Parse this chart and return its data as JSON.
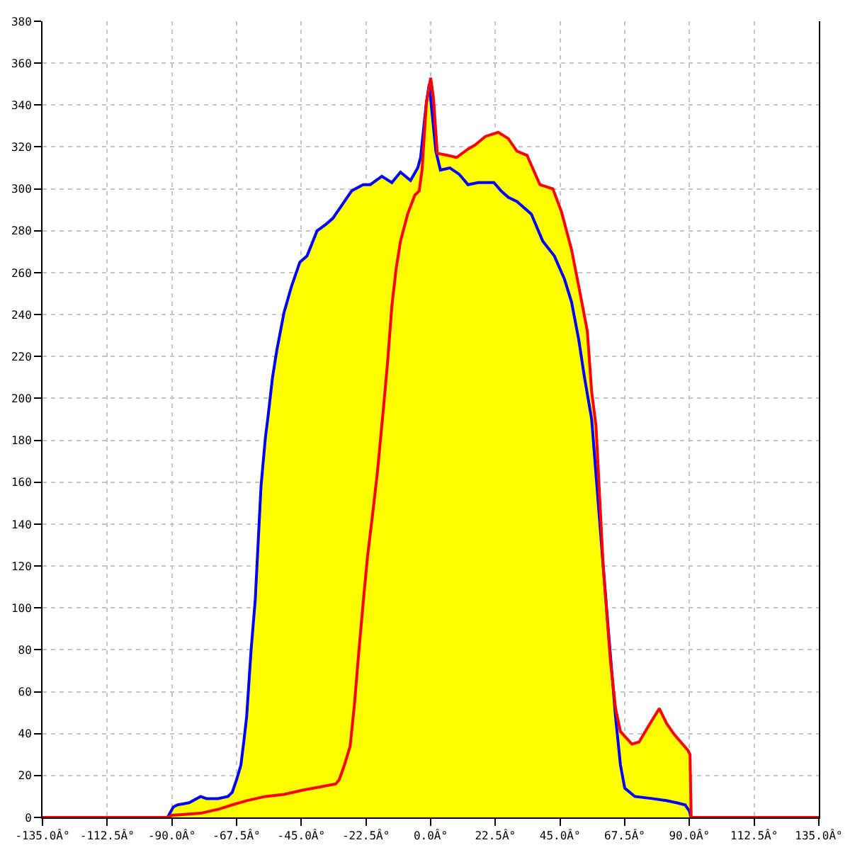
{
  "chart_data": {
    "type": "area",
    "xlim": [
      -135,
      135
    ],
    "xticks": [
      {
        "value": -135,
        "label": "-135.0Â°"
      },
      {
        "value": -112.5,
        "label": "-112.5Â°"
      },
      {
        "value": -90,
        "label": "-90.0Â°"
      },
      {
        "value": -67.5,
        "label": "-67.5Â°"
      },
      {
        "value": -45,
        "label": "-45.0Â°"
      },
      {
        "value": -22.5,
        "label": "-22.5Â°"
      },
      {
        "value": 0,
        "label": "0.0Â°"
      },
      {
        "value": 22.5,
        "label": "22.5Â°"
      },
      {
        "value": 45,
        "label": "45.0Â°"
      },
      {
        "value": 67.5,
        "label": "67.5Â°"
      },
      {
        "value": 90,
        "label": "90.0Â°"
      },
      {
        "value": 112.5,
        "label": "112.5Â°"
      },
      {
        "value": 135,
        "label": "135.0Â°"
      }
    ],
    "ylim": [
      0,
      380
    ],
    "yticks": [
      0,
      20,
      40,
      60,
      80,
      100,
      120,
      140,
      160,
      180,
      200,
      220,
      240,
      260,
      280,
      300,
      320,
      340,
      360,
      380
    ],
    "grid": true,
    "series": [
      {
        "color": "#ffff00",
        "x": [
          -91.5,
          -89.5,
          -88,
          -84,
          -80,
          -78,
          -74,
          -70.5,
          -69,
          -67.5,
          -66,
          -65,
          -64,
          -62.5,
          -61,
          -60,
          -59,
          -57.5,
          -56.5,
          -55,
          -53.5,
          -51,
          -48.5,
          -45.5,
          -43,
          -39.5,
          -36.5,
          -34,
          -30.5,
          -27.5,
          -23.5,
          -21,
          -17,
          -13.5,
          -10.5,
          -7,
          -4.5,
          -3.5,
          -1.5,
          -0.5,
          0,
          1,
          2.3,
          5.8,
          9,
          13,
          15.5,
          19,
          23.5,
          27,
          30,
          33.5,
          38,
          42.5,
          45.5,
          49,
          52,
          54.5,
          56,
          57.5,
          60,
          62.5,
          64.3,
          66,
          70,
          72.5,
          75.5,
          79.5,
          82,
          84.5,
          89.5,
          90.2,
          90.6
        ],
        "values": [
          0,
          5,
          6,
          7,
          10,
          9,
          9,
          10,
          12,
          18,
          25,
          36,
          48,
          79,
          104,
          131,
          158,
          181,
          192,
          210,
          223,
          241,
          253,
          265,
          268,
          280,
          283,
          286,
          293,
          299,
          302,
          302,
          306,
          303,
          308,
          304,
          310,
          315,
          341,
          350,
          353,
          343,
          317,
          316,
          315,
          319,
          321,
          325,
          327,
          324,
          318,
          316,
          302,
          300,
          289,
          271,
          250,
          232,
          203,
          187,
          120,
          75,
          52,
          41,
          35,
          36,
          43,
          52,
          45,
          40,
          32,
          30,
          0
        ]
      },
      {
        "type": "line",
        "color": "#0000ff",
        "x": [
          -91.5,
          -89.5,
          -88,
          -84,
          -80,
          -78,
          -74,
          -70.5,
          -69,
          -67.5,
          -66,
          -65,
          -64,
          -62.5,
          -61,
          -60,
          -59,
          -57.5,
          -56.5,
          -55,
          -53.5,
          -51,
          -48.5,
          -45.5,
          -43,
          -39.5,
          -36.5,
          -34,
          -30.5,
          -27.5,
          -23.5,
          -21,
          -17,
          -13.5,
          -10.5,
          -7,
          -4.5,
          -3.5,
          -1.5,
          -0.5,
          1.8,
          3.4,
          6.7,
          9.9,
          13,
          16.5,
          22,
          24.5,
          27,
          30,
          35,
          39,
          43,
          46.5,
          49,
          51.5,
          53.5,
          56,
          60,
          62,
          64.3,
          66,
          67.5,
          71,
          77,
          82,
          85.5,
          88.5,
          90,
          90.5
        ],
        "values": [
          0,
          5,
          6,
          7,
          10,
          9,
          9,
          10,
          12,
          18,
          25,
          36,
          48,
          79,
          104,
          131,
          158,
          181,
          192,
          210,
          223,
          241,
          253,
          265,
          268,
          280,
          283,
          286,
          293,
          299,
          302,
          302,
          306,
          303,
          308,
          304,
          310,
          315,
          341,
          350,
          318,
          309,
          310,
          307,
          302,
          303,
          303,
          299,
          296,
          294,
          288,
          275,
          268,
          257,
          246,
          228,
          210,
          190,
          120,
          86,
          48,
          25,
          14,
          10,
          9,
          8,
          7,
          6,
          3,
          0
        ]
      },
      {
        "type": "line",
        "color": "#ff0000",
        "x": [
          -135,
          -91.5,
          -90,
          -80,
          -73.5,
          -69,
          -64,
          -57.5,
          -51,
          -44.5,
          -40.5,
          -33,
          -31.8,
          -30,
          -28,
          -26.5,
          -25,
          -23.5,
          -22,
          -20,
          -18.5,
          -17,
          -16.5,
          -15,
          -13.5,
          -12,
          -10.5,
          -8,
          -5.5,
          -4,
          -3,
          -1.5,
          0,
          1,
          2.3,
          5.8,
          9,
          13,
          15.5,
          19,
          23.5,
          27,
          30,
          33.5,
          38,
          42.5,
          45.5,
          49,
          52,
          54.5,
          56,
          57.5,
          60,
          62.5,
          64.3,
          66,
          70,
          72.5,
          75.5,
          79.5,
          82,
          84.5,
          89.5,
          90.2,
          90.6,
          135
        ],
        "values": [
          0,
          0,
          1,
          2,
          4,
          6,
          8,
          10,
          11,
          13,
          14,
          16,
          18,
          25,
          34,
          54,
          79,
          102,
          124,
          147,
          165,
          187,
          194,
          217,
          244,
          262,
          275,
          288,
          297,
          299,
          309,
          341,
          353,
          343,
          317,
          316,
          315,
          319,
          321,
          325,
          327,
          324,
          318,
          316,
          302,
          300,
          289,
          271,
          250,
          232,
          203,
          187,
          120,
          75,
          52,
          41,
          35,
          36,
          43,
          52,
          45,
          40,
          32,
          30,
          0,
          0
        ]
      }
    ]
  }
}
